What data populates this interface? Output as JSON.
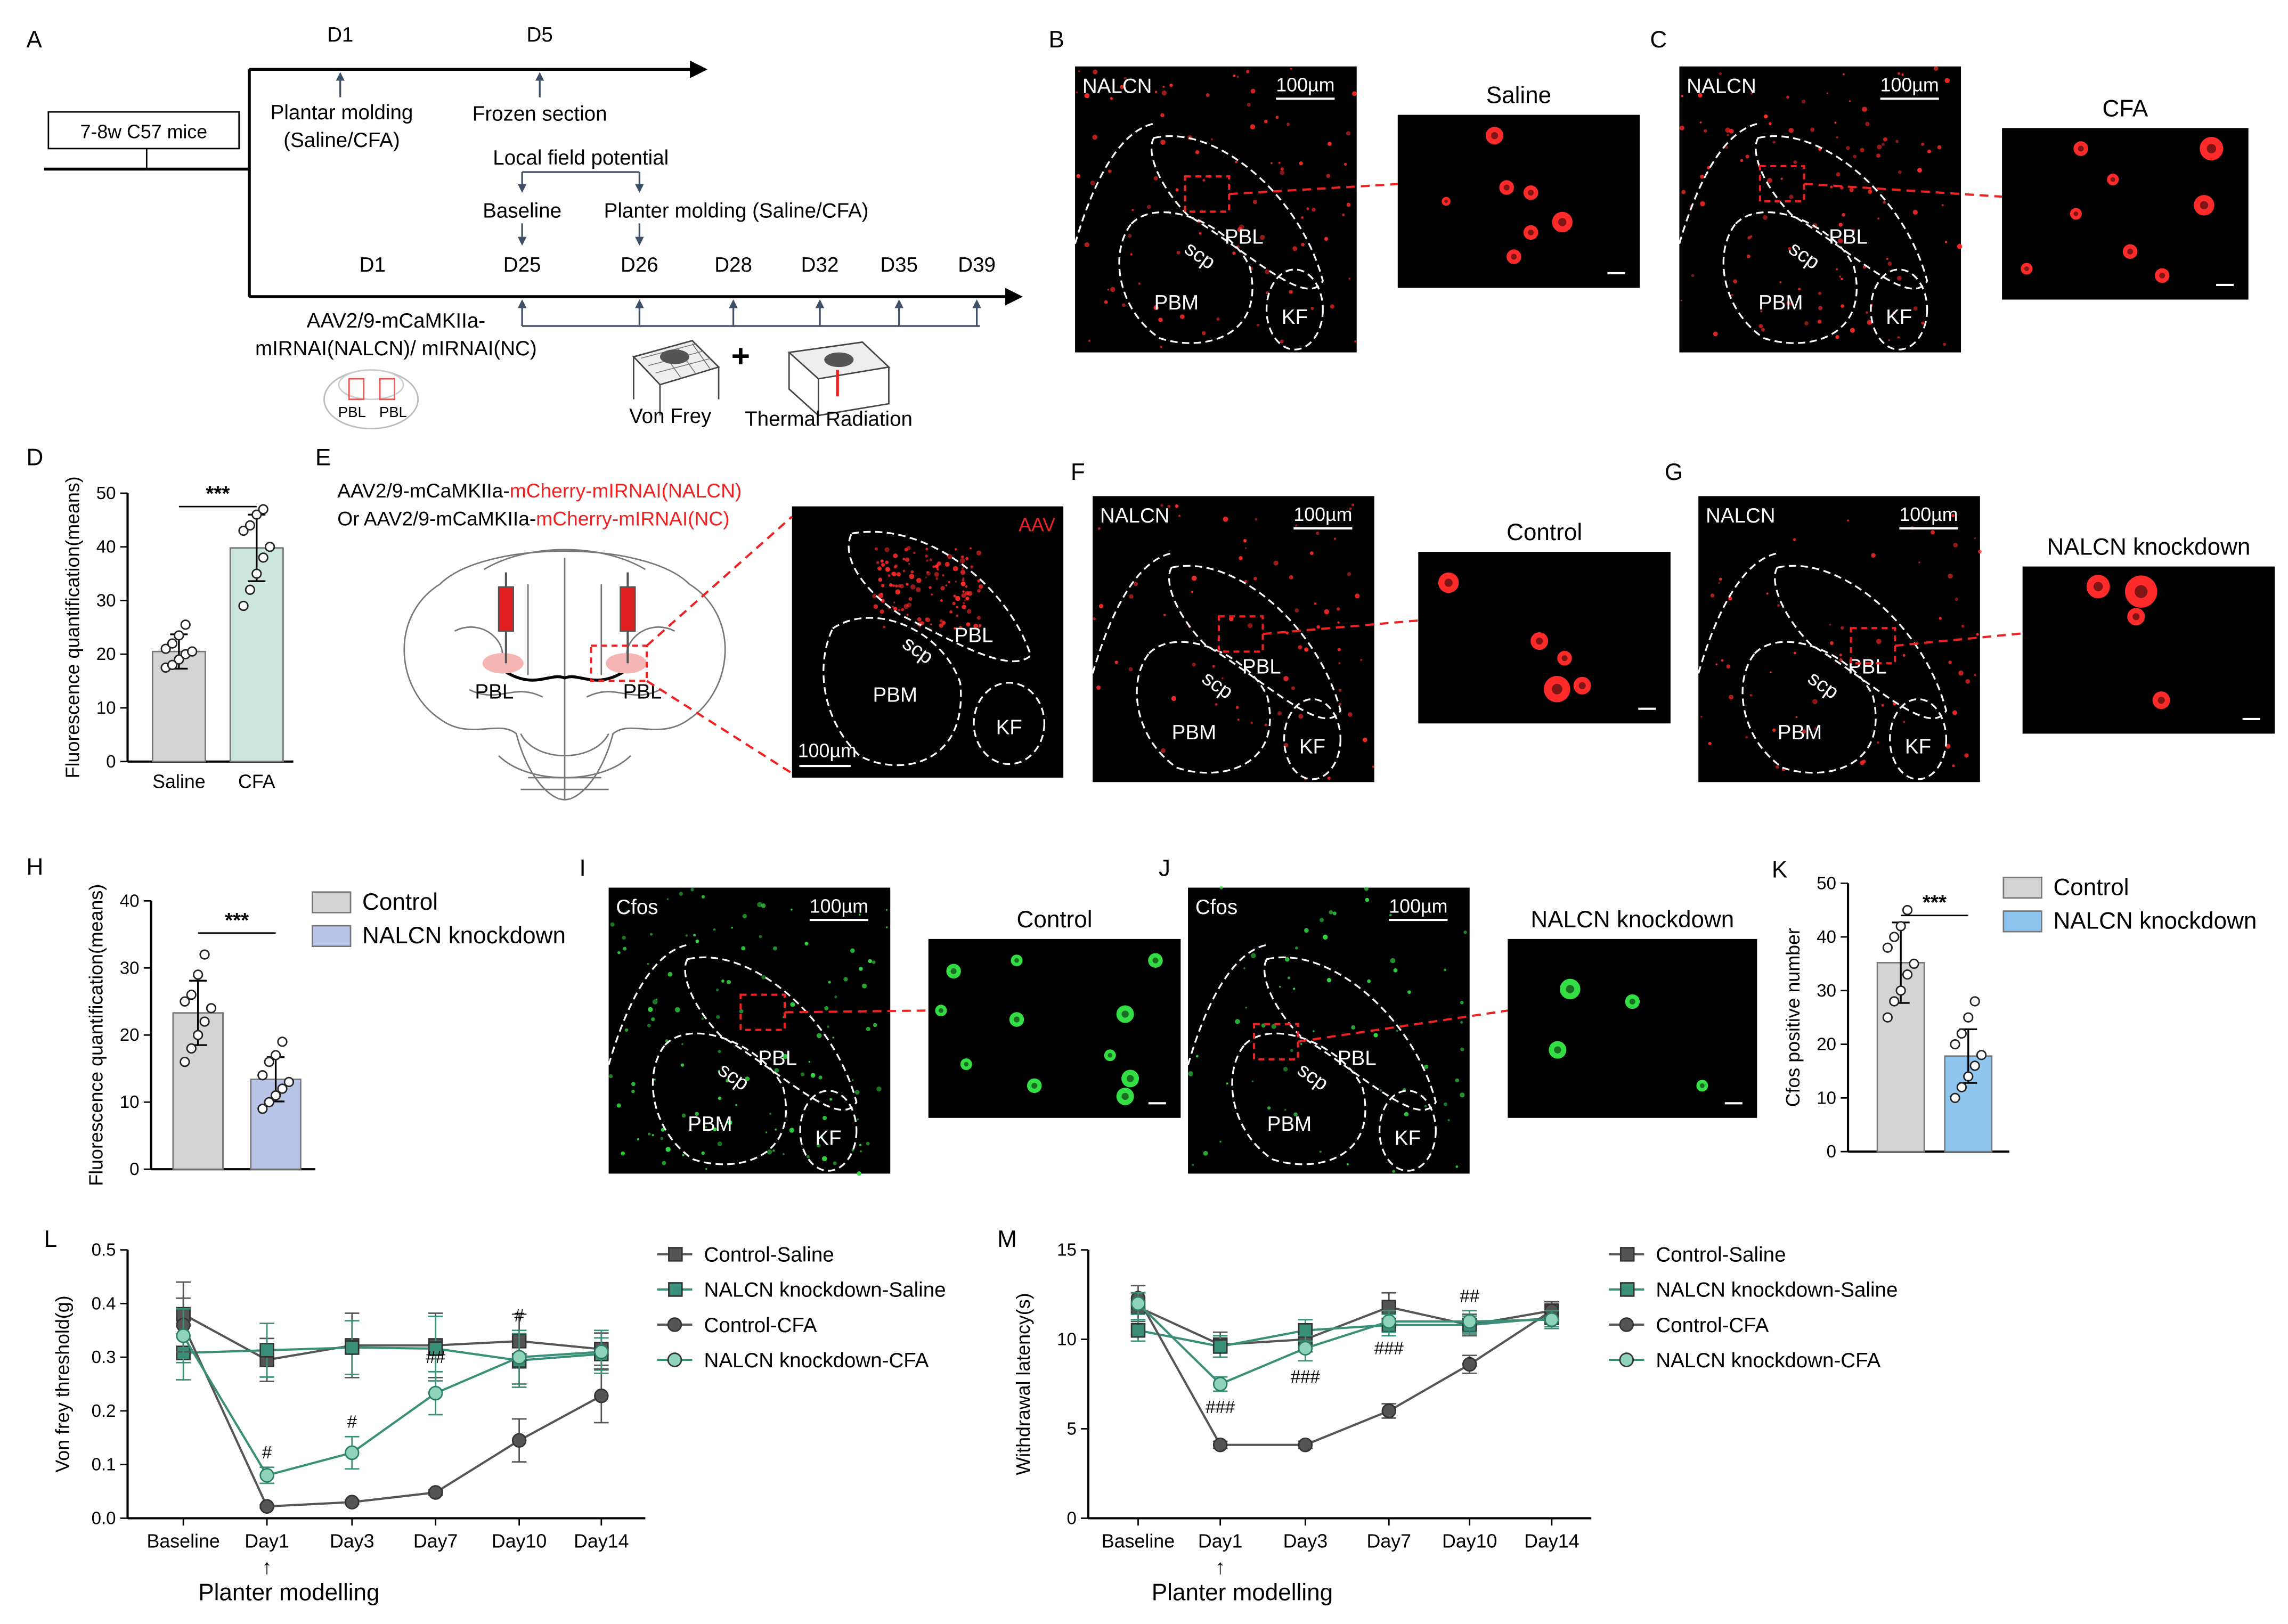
{
  "A": {
    "label": "A",
    "mice": "7-8w C57 mice",
    "top": [
      "D1",
      "D5"
    ],
    "plantar": [
      "Plantar molding",
      "(Saline/CFA)"
    ],
    "frozen": "Frozen section",
    "lfp": "Local field potential",
    "baseline": "Baseline",
    "pm2": "Planter molding (Saline/CFA)",
    "bottom": [
      "D1",
      "D25",
      "D26",
      "D28",
      "D32",
      "D35",
      "D39"
    ],
    "aav": [
      "AAV2/9-mCaMKIIa-",
      "mIRNAI(NALCN)/ mIRNAI(NC)"
    ],
    "pbl": "PBL",
    "plus": "+",
    "vf": "Von Frey",
    "tr": "Thermal Radiation"
  },
  "img": {
    "nalcn": "NALCN",
    "scale": "100µm",
    "pbl": "PBL",
    "scp": "scp",
    "pbm": "PBM",
    "kf": "KF",
    "aav": "AAV",
    "cfos": "Cfos"
  },
  "B": {
    "label": "B",
    "inset": "Saline"
  },
  "C": {
    "label": "C",
    "inset": "CFA"
  },
  "D": {
    "label": "D",
    "ylabel": "Fluorescence quantification(means)",
    "cats": [
      "Saline",
      "CFA"
    ],
    "ticks": [
      "0",
      "10",
      "20",
      "30",
      "40",
      "50"
    ],
    "sig": "***"
  },
  "E": {
    "label": "E",
    "l1": "AAV2/9-mCaMKIIa-",
    "l1r": "mCherry-mIRNAI(NALCN)",
    "l2": "Or AAV2/9-mCaMKIIa-",
    "l2r": "mCherry-mIRNAI(NC)"
  },
  "F": {
    "label": "F",
    "inset": "Control"
  },
  "G": {
    "label": "G",
    "inset": "NALCN knockdown"
  },
  "H": {
    "label": "H",
    "ylabel": "Fluorescence quantification(means)",
    "ticks": [
      "0",
      "10",
      "20",
      "30",
      "40"
    ],
    "sig": "***",
    "legend": [
      "Control",
      "NALCN knockdown"
    ]
  },
  "I": {
    "label": "I",
    "inset": "Control"
  },
  "J": {
    "label": "J",
    "inset": "NALCN knockdown"
  },
  "K": {
    "label": "K",
    "ylabel": "Cfos positive number",
    "ticks": [
      "0",
      "10",
      "20",
      "30",
      "40",
      "50"
    ],
    "sig": "***",
    "legend": [
      "Control",
      "NALCN knockdown"
    ]
  },
  "L": {
    "label": "L",
    "ylabel": "Von frey threshold(g)",
    "ticks": [
      "0.0",
      "0.1",
      "0.2",
      "0.3",
      "0.4",
      "0.5"
    ],
    "note": "Planter modelling",
    "arrow": "↑"
  },
  "M": {
    "label": "M",
    "ylabel": "Withdrawal latency(s)",
    "ticks": [
      "0",
      "5",
      "10",
      "15"
    ],
    "note": "Planter modelling",
    "arrow": "↑"
  },
  "lineLegend": [
    "Control-Saline",
    "NALCN knockdown-Saline",
    "Control-CFA",
    "NALCN knockdown-CFA"
  ],
  "colors": {
    "grey": "#555555",
    "green": "#3a8f78",
    "red": "#ee2222",
    "bar1": "#d4d4d4",
    "barCFA": "#cce6dd",
    "barKD": "#b8c4e8",
    "barKD2": "#8ec6f0"
  },
  "chart_data": [
    {
      "id": "D",
      "type": "bar",
      "categories": [
        "Saline",
        "CFA"
      ],
      "values": [
        20.5,
        39.8
      ],
      "errors": [
        3.2,
        6.2
      ],
      "ylim": [
        0,
        50
      ],
      "ylabel": "Fluorescence quantification(means)",
      "points": [
        [
          17.5,
          18,
          19,
          20,
          20.5,
          21,
          22,
          23.5,
          25.5
        ],
        [
          29,
          32,
          35,
          38,
          40,
          43,
          44,
          46,
          47
        ]
      ]
    },
    {
      "id": "H",
      "type": "bar",
      "categories": [
        "Control",
        "NALCN knockdown"
      ],
      "values": [
        23.3,
        13.4
      ],
      "errors": [
        4.8,
        3.3
      ],
      "ylim": [
        0,
        40
      ],
      "ylabel": "Fluorescence quantification(means)",
      "points": [
        [
          16,
          18,
          20,
          22,
          24,
          25,
          26,
          29,
          32
        ],
        [
          9,
          10,
          11,
          12,
          13,
          14,
          16,
          17,
          19
        ]
      ]
    },
    {
      "id": "K",
      "type": "bar",
      "categories": [
        "Control",
        "NALCN knockdown"
      ],
      "values": [
        35.2,
        17.8
      ],
      "errors": [
        7.5,
        5.0
      ],
      "ylim": [
        0,
        50
      ],
      "ylabel": "Cfos positive number",
      "points": [
        [
          25,
          28,
          30,
          33,
          35,
          38,
          40,
          42,
          45
        ],
        [
          10,
          12,
          14,
          16,
          18,
          20,
          22,
          25,
          28
        ]
      ]
    },
    {
      "id": "L",
      "type": "line",
      "categories": [
        "Baseline",
        "Day1",
        "Day3",
        "Day7",
        "Day10",
        "Day14"
      ],
      "ylim": [
        0,
        0.5
      ],
      "ylabel": "Von frey threshold(g)",
      "series": [
        {
          "name": "Control-Saline",
          "values": [
            0.38,
            0.295,
            0.322,
            0.322,
            0.33,
            0.315
          ],
          "errors": [
            0.06,
            0.04,
            0.06,
            0.06,
            0.05,
            0.03
          ]
        },
        {
          "name": "NALCN knockdown-Saline",
          "values": [
            0.308,
            0.313,
            0.318,
            0.316,
            0.294,
            0.306
          ],
          "errors": [
            0.05,
            0.05,
            0.05,
            0.06,
            0.05,
            0.03
          ]
        },
        {
          "name": "Control-CFA",
          "values": [
            0.36,
            0.022,
            0.03,
            0.048,
            0.145,
            0.228
          ],
          "errors": [
            0.05,
            0.003,
            0.004,
            0.005,
            0.04,
            0.05
          ]
        },
        {
          "name": "NALCN knockdown-CFA",
          "values": [
            0.34,
            0.08,
            0.122,
            0.233,
            0.3,
            0.31
          ],
          "errors": [
            0.05,
            0.015,
            0.03,
            0.04,
            0.05,
            0.04
          ]
        }
      ],
      "annotations": [
        {
          "x": "Day1",
          "text": "#"
        },
        {
          "x": "Day3",
          "text": "#"
        },
        {
          "x": "Day7",
          "text": "##"
        },
        {
          "x": "Day10",
          "text": "#"
        }
      ]
    },
    {
      "id": "M",
      "type": "line",
      "categories": [
        "Baseline",
        "Day1",
        "Day3",
        "Day7",
        "Day10",
        "Day14"
      ],
      "ylim": [
        0,
        15
      ],
      "ylabel": "Withdrawal latency(s)",
      "series": [
        {
          "name": "Control-Saline",
          "values": [
            11.8,
            9.7,
            10,
            11.8,
            10.8,
            11.6
          ],
          "errors": [
            0.8,
            0.7,
            0.7,
            0.8,
            0.6,
            0.5
          ]
        },
        {
          "name": "NALCN knockdown-Saline",
          "values": [
            10.5,
            9.6,
            10.5,
            10.8,
            10.8,
            11.2
          ],
          "errors": [
            0.6,
            0.6,
            0.6,
            0.6,
            0.5,
            0.5
          ]
        },
        {
          "name": "Control-CFA",
          "values": [
            12.3,
            4.1,
            4.1,
            6,
            8.6,
            11.6
          ],
          "errors": [
            0.7,
            0.2,
            0.2,
            0.4,
            0.5,
            0.5
          ]
        },
        {
          "name": "NALCN knockdown-CFA",
          "values": [
            12,
            7.5,
            9.5,
            11,
            11,
            11.1
          ],
          "errors": [
            0.6,
            0.4,
            0.7,
            0.6,
            0.6,
            0.5
          ]
        }
      ],
      "annotations": [
        {
          "x": "Day1",
          "text": "###"
        },
        {
          "x": "Day3",
          "text": "###"
        },
        {
          "x": "Day7",
          "text": "###"
        },
        {
          "x": "Day10",
          "text": "##"
        }
      ]
    }
  ]
}
